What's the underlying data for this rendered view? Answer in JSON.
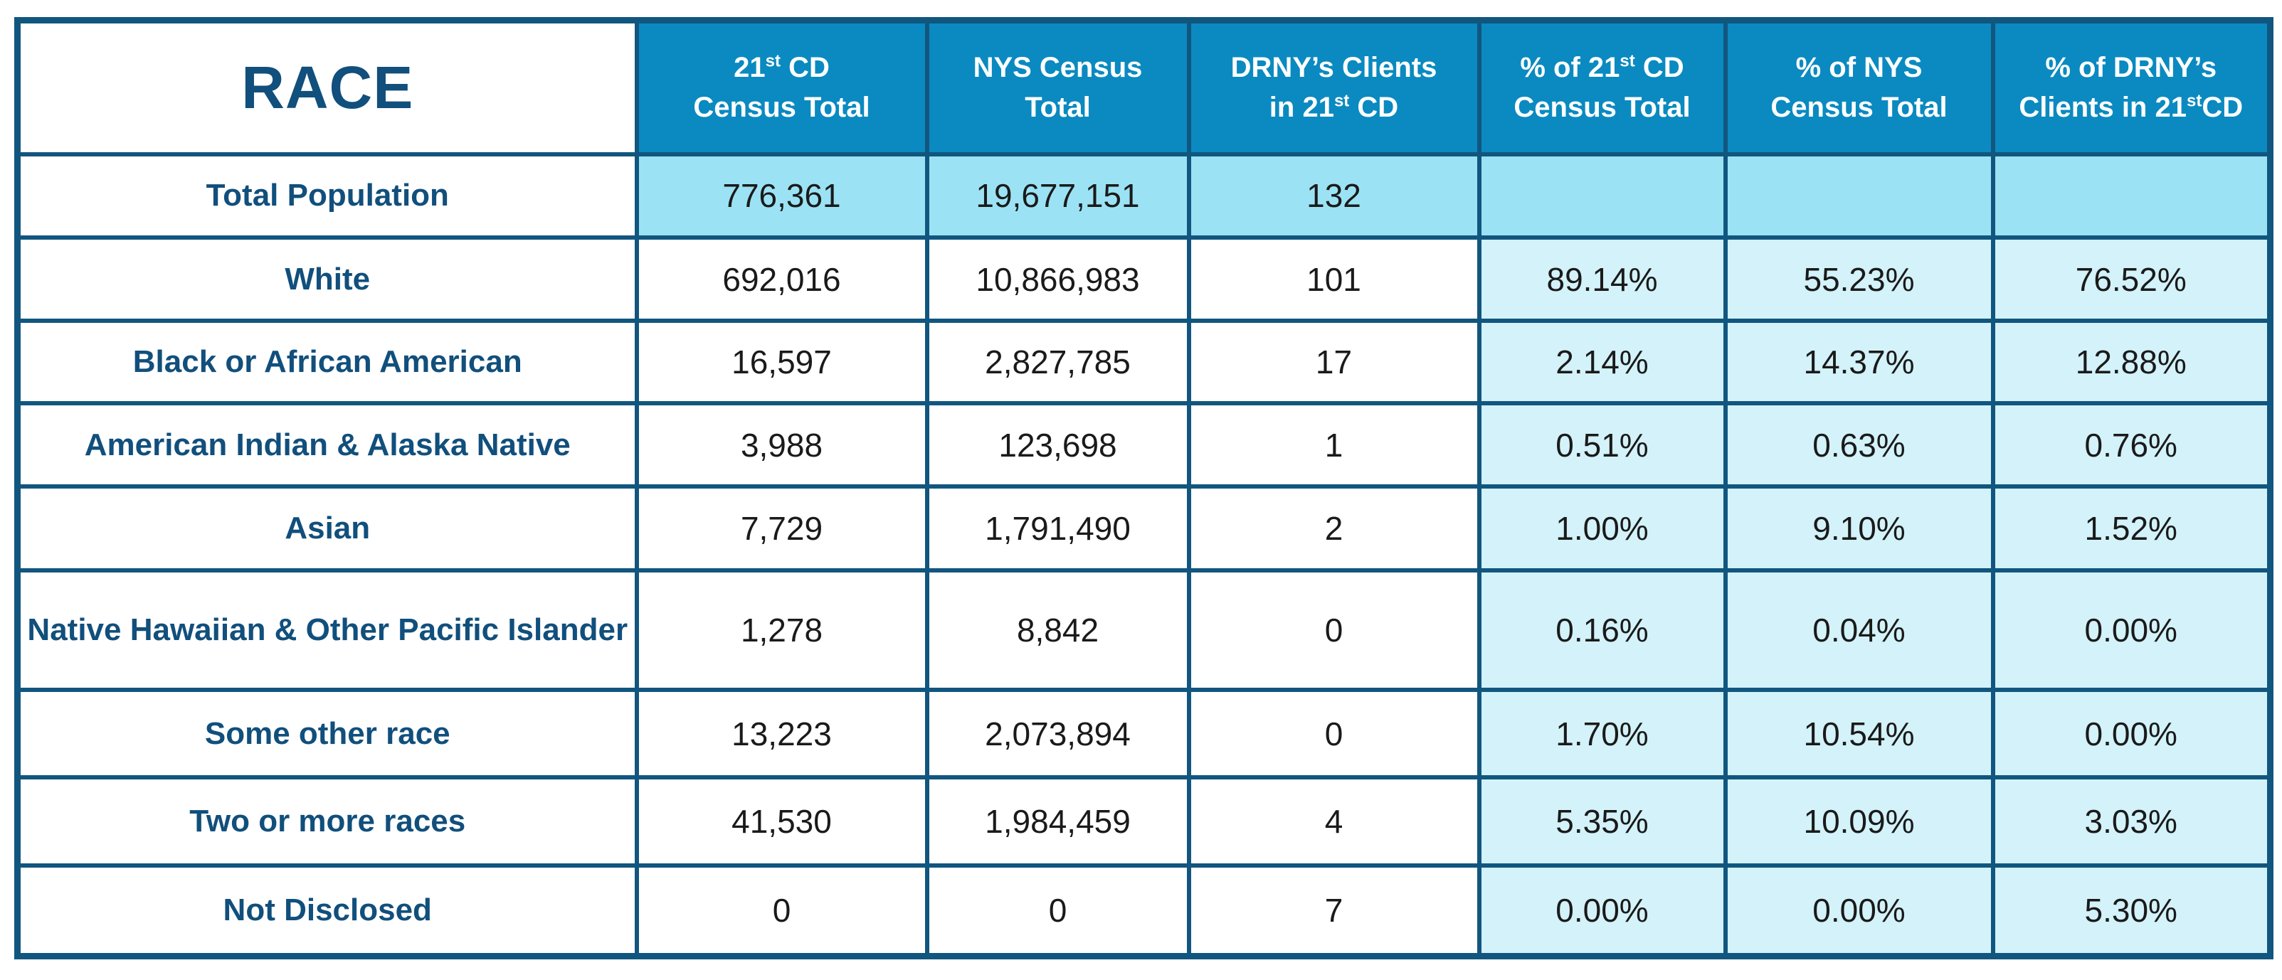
{
  "table": {
    "corner_label": "RACE",
    "headers": [
      {
        "l1a": "21",
        "sup1": "st",
        "l1b": " CD",
        "l2": "Census Total",
        "sup2": "",
        "l2b": ""
      },
      {
        "l1a": "NYS Census",
        "sup1": "",
        "l1b": "",
        "l2": "Total",
        "sup2": "",
        "l2b": ""
      },
      {
        "l1a": "DRNY’s Clients",
        "sup1": "",
        "l1b": "",
        "l2": "in 21",
        "sup2": "st",
        "l2b": " CD"
      },
      {
        "l1a": "% of 21",
        "sup1": "st",
        "l1b": " CD",
        "l2": "Census Total",
        "sup2": "",
        "l2b": ""
      },
      {
        "l1a": "% of NYS",
        "sup1": "",
        "l1b": "",
        "l2": "Census Total",
        "sup2": "",
        "l2b": ""
      },
      {
        "l1a": "% of DRNY’s",
        "sup1": "",
        "l1b": "",
        "l2": "Clients in 21",
        "sup2": "st",
        "l2b": "CD"
      }
    ],
    "rows": [
      {
        "label": "Total Population",
        "values": [
          "776,361",
          "19,677,151",
          "132",
          "",
          "",
          ""
        ]
      },
      {
        "label": "White",
        "values": [
          "692,016",
          "10,866,983",
          "101",
          "89.14%",
          "55.23%",
          "76.52%"
        ]
      },
      {
        "label": "Black or African American",
        "values": [
          "16,597",
          "2,827,785",
          "17",
          "2.14%",
          "14.37%",
          "12.88%"
        ]
      },
      {
        "label": "American Indian & Alaska Native",
        "values": [
          "3,988",
          "123,698",
          "1",
          "0.51%",
          "0.63%",
          "0.76%"
        ]
      },
      {
        "label": "Asian",
        "values": [
          "7,729",
          "1,791,490",
          "2",
          "1.00%",
          "9.10%",
          "1.52%"
        ]
      },
      {
        "label": "Native Hawaiian & Other Pacific Islander",
        "values": [
          "1,278",
          "8,842",
          "0",
          "0.16%",
          "0.04%",
          "0.00%"
        ]
      },
      {
        "label": "Some other race",
        "values": [
          "13,223",
          "2,073,894",
          "0",
          "1.70%",
          "10.54%",
          "0.00%"
        ]
      },
      {
        "label": "Two or more races",
        "values": [
          "41,530",
          "1,984,459",
          "4",
          "5.35%",
          "10.09%",
          "3.03%"
        ]
      },
      {
        "label": "Not Disclosed",
        "values": [
          "0",
          "0",
          "7",
          "0.00%",
          "0.00%",
          "5.30%"
        ]
      }
    ]
  },
  "colors": {
    "border": "#11567f",
    "header_bg": "#0a8ac0",
    "label_text": "#114f7c",
    "total_row_bg": "#9be3f4",
    "percent_col_bg": "#d3f2f9"
  }
}
